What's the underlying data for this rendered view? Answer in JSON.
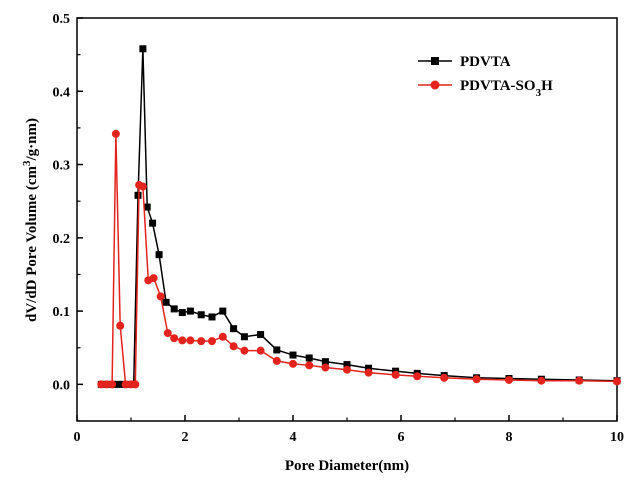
{
  "chart_data": {
    "type": "line",
    "title": "",
    "xlabel": "Pore Diameter(nm)",
    "ylabel": "dV/dD Pore Volume (cm³/g·nm)",
    "ylabel_parts": {
      "main": "dV/dD Pore Volume (cm",
      "sup": "3",
      "tail": "/g·nm)"
    },
    "xlim": [
      0,
      10
    ],
    "ylim": [
      -0.05,
      0.5
    ],
    "xticks": [
      "0",
      "2",
      "4",
      "6",
      "8",
      "10"
    ],
    "yticks": [
      "0.0",
      "0.1",
      "0.2",
      "0.3",
      "0.4",
      "0.5"
    ],
    "grid": false,
    "legend_position": "top-right",
    "series": [
      {
        "name": "PDVTA",
        "legend_parts": {
          "main": "PDVTA",
          "sub": "",
          "tail": ""
        },
        "color": "#000000",
        "marker": "square",
        "x": [
          0.45,
          0.55,
          0.65,
          0.75,
          0.85,
          0.95,
          1.05,
          1.13,
          1.22,
          1.3,
          1.4,
          1.52,
          1.65,
          1.8,
          1.95,
          2.1,
          2.3,
          2.5,
          2.7,
          2.9,
          3.1,
          3.4,
          3.7,
          4.0,
          4.3,
          4.6,
          5.0,
          5.4,
          5.9,
          6.3,
          6.8,
          7.4,
          8.0,
          8.6,
          9.3,
          10.0
        ],
        "y": [
          0.0,
          0.0,
          0.0,
          0.0,
          0.0,
          0.0,
          0.0,
          0.258,
          0.458,
          0.242,
          0.22,
          0.177,
          0.112,
          0.103,
          0.098,
          0.1,
          0.095,
          0.092,
          0.1,
          0.076,
          0.065,
          0.068,
          0.047,
          0.04,
          0.036,
          0.031,
          0.027,
          0.022,
          0.018,
          0.015,
          0.012,
          0.009,
          0.008,
          0.007,
          0.006,
          0.005
        ]
      },
      {
        "name": "PDVTA-SO3H",
        "legend_parts": {
          "main": "PDVTA-SO",
          "sub": "3",
          "tail": "H"
        },
        "color": "#e3231c",
        "marker": "circle",
        "x": [
          0.45,
          0.55,
          0.65,
          0.72,
          0.8,
          0.9,
          1.0,
          1.08,
          1.15,
          1.22,
          1.32,
          1.42,
          1.55,
          1.68,
          1.8,
          1.95,
          2.1,
          2.3,
          2.5,
          2.7,
          2.9,
          3.1,
          3.4,
          3.7,
          4.0,
          4.3,
          4.6,
          5.0,
          5.4,
          5.9,
          6.3,
          6.8,
          7.4,
          8.0,
          8.6,
          9.3,
          10.0
        ],
        "y": [
          0.0,
          0.0,
          0.0,
          0.342,
          0.08,
          0.0,
          0.0,
          0.0,
          0.272,
          0.27,
          0.142,
          0.145,
          0.12,
          0.07,
          0.063,
          0.06,
          0.06,
          0.059,
          0.059,
          0.065,
          0.052,
          0.046,
          0.046,
          0.032,
          0.028,
          0.026,
          0.023,
          0.02,
          0.016,
          0.013,
          0.011,
          0.009,
          0.007,
          0.006,
          0.005,
          0.005,
          0.004
        ]
      }
    ]
  }
}
